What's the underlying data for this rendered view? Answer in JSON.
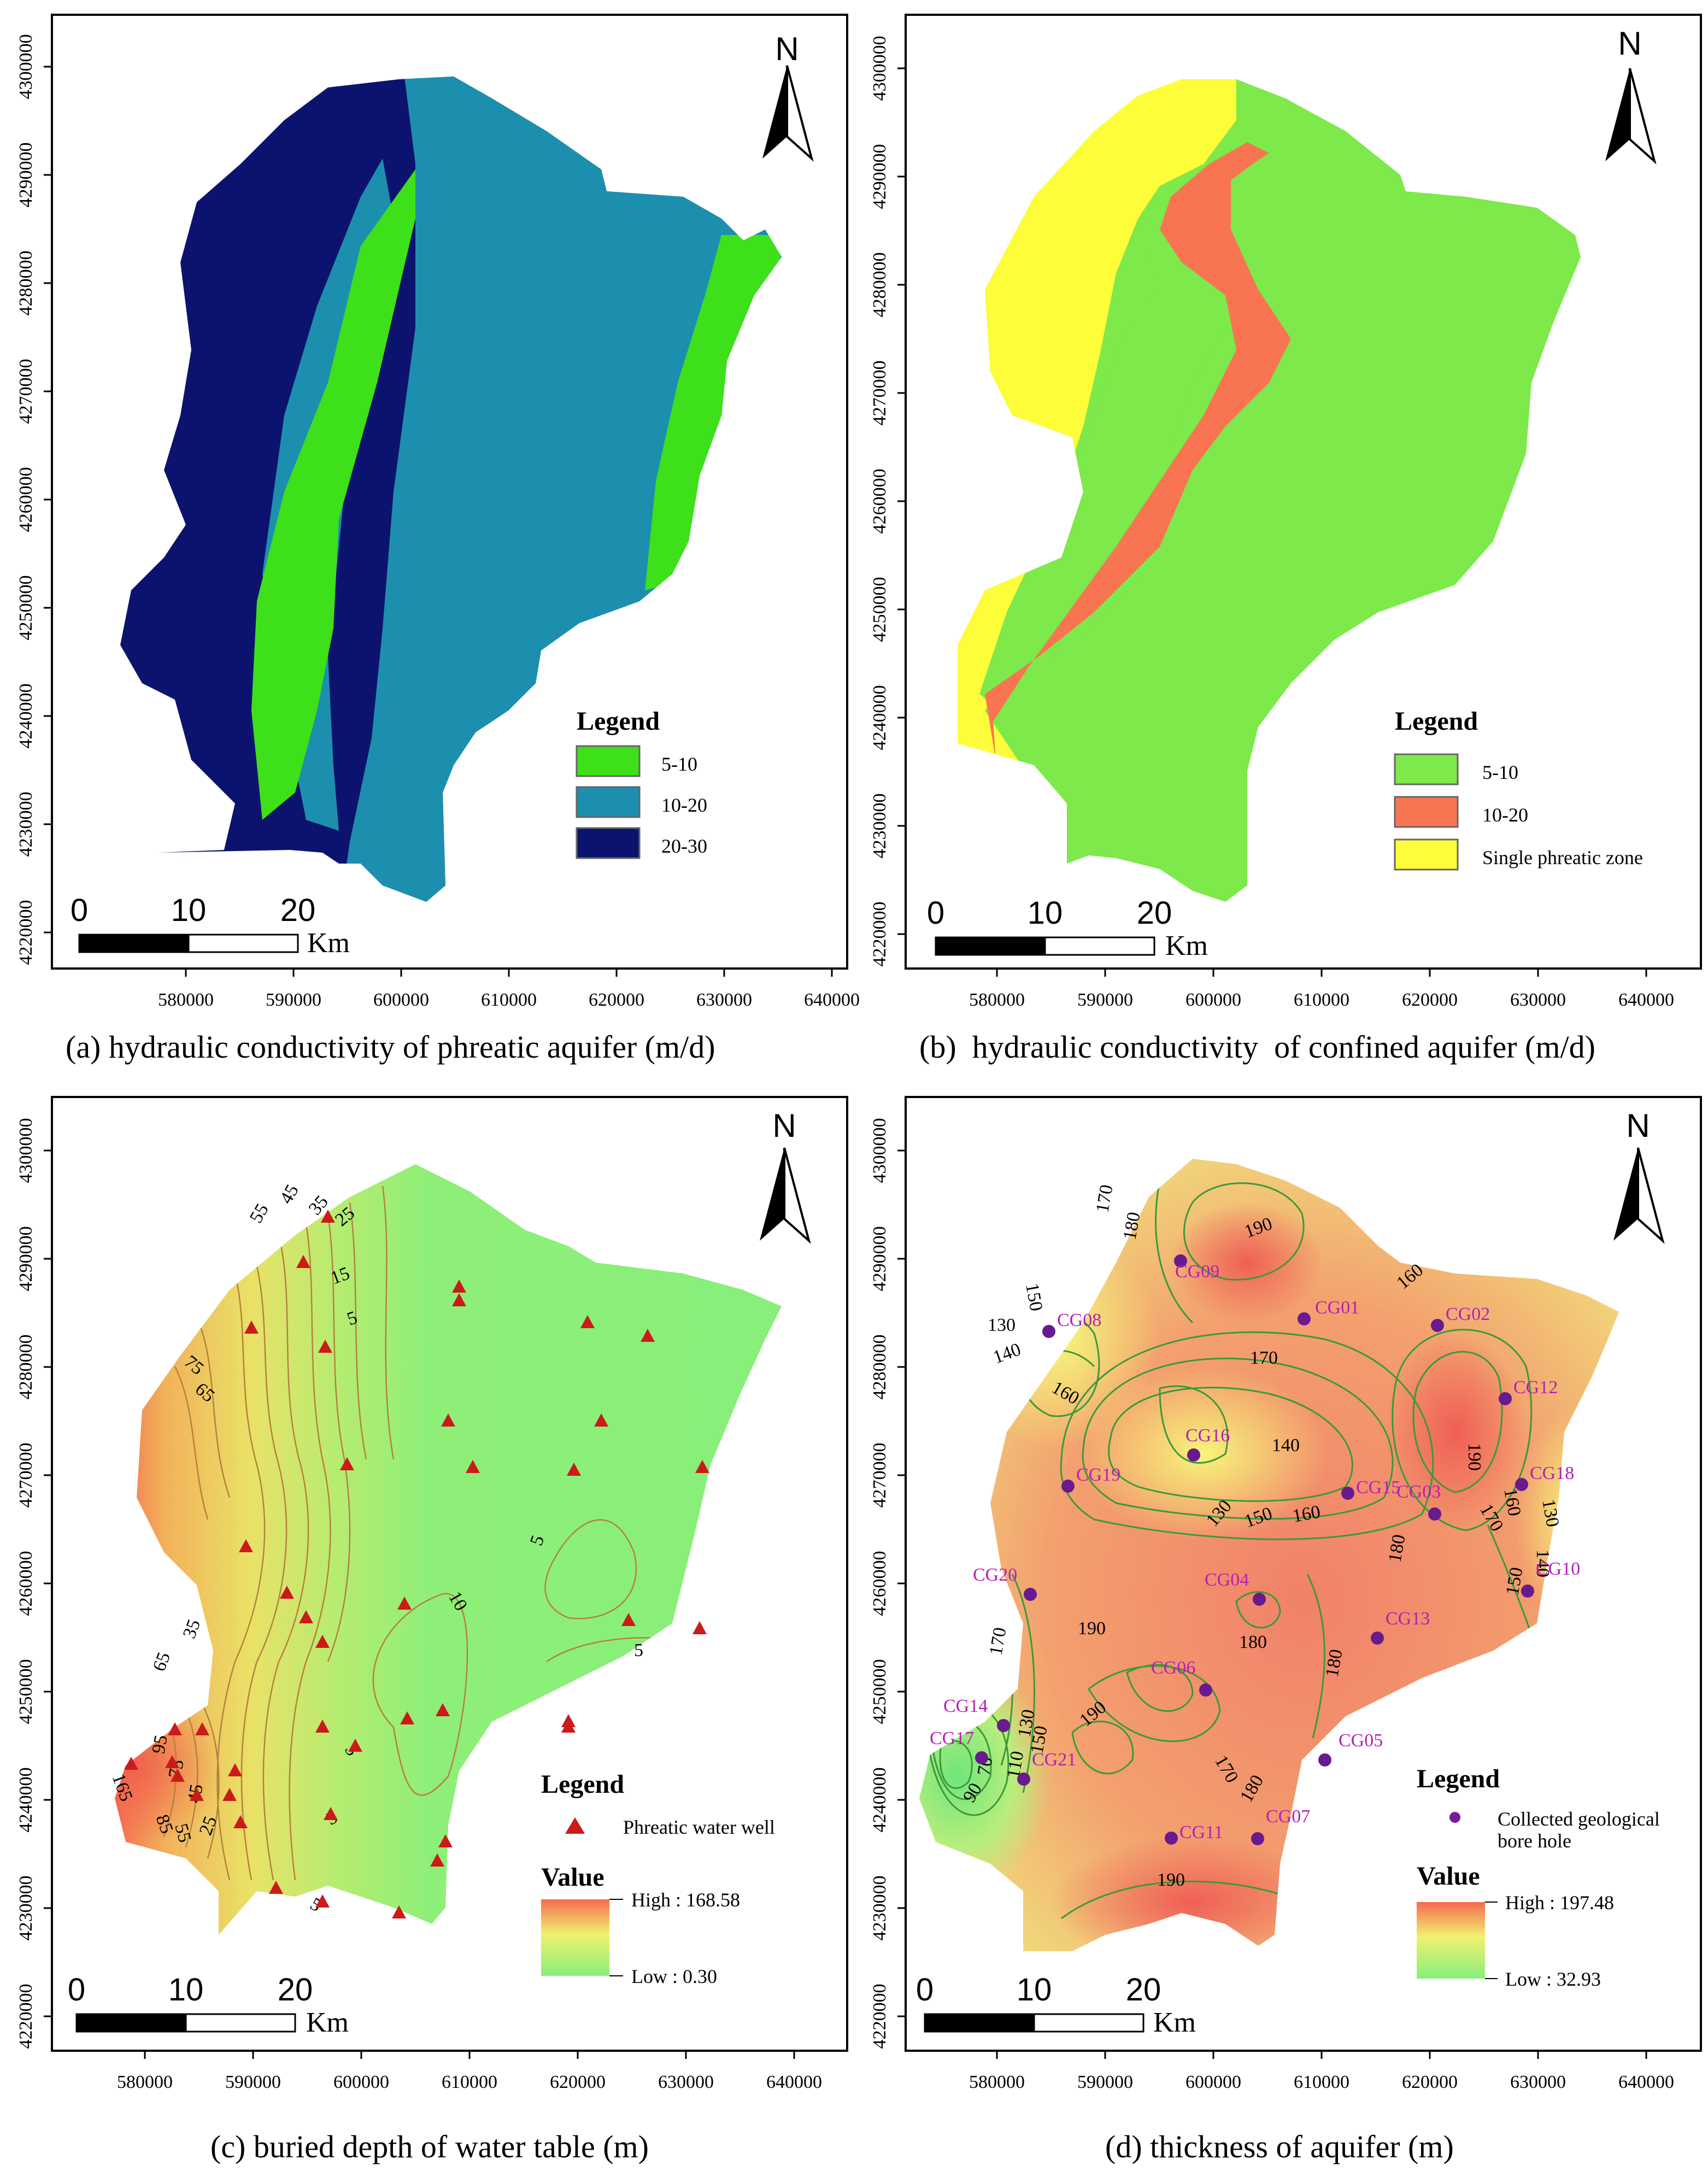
{
  "panels": [
    {
      "id": "a",
      "caption": "(a) hydraulic conductivity of phreatic aquifer (m/d)",
      "north": "N",
      "legend_title": "Legend",
      "legend_items": [
        {
          "label": "5-10",
          "color": "#3ee01a"
        },
        {
          "label": "10-20",
          "color": "#1d8fae"
        },
        {
          "label": "20-30",
          "color": "#0c136e"
        }
      ],
      "scale": {
        "ticks": [
          "0",
          "10",
          "20"
        ],
        "unit": "Km"
      },
      "x_ticks": [
        "580000",
        "590000",
        "600000",
        "610000",
        "620000",
        "630000",
        "640000"
      ],
      "y_ticks": [
        "4300000",
        "4290000",
        "4280000",
        "4270000",
        "4260000",
        "4250000",
        "4240000",
        "4230000",
        "4220000"
      ]
    },
    {
      "id": "b",
      "caption": "(b)  hydraulic conductivity  of confined aquifer (m/d)",
      "north": "N",
      "legend_title": "Legend",
      "legend_items": [
        {
          "label": "5-10",
          "color": "#7de94a"
        },
        {
          "label": "10-20",
          "color": "#f97451"
        },
        {
          "label": "Single phreatic zone",
          "color": "#fdfd3a"
        }
      ],
      "scale": {
        "ticks": [
          "0",
          "10",
          "20"
        ],
        "unit": "Km"
      },
      "x_ticks": [
        "580000",
        "590000",
        "600000",
        "610000",
        "620000",
        "630000",
        "640000"
      ],
      "y_ticks": [
        "4300000",
        "4290000",
        "4280000",
        "4270000",
        "4260000",
        "4250000",
        "4240000",
        "4230000",
        "4220000"
      ]
    },
    {
      "id": "c",
      "caption": "(c) buried depth of water table (m)",
      "north": "N",
      "legend_title": "Legend",
      "point_legend": "Phreatic water well",
      "value_title": "Value",
      "value_high": "High : 168.58",
      "value_low": "Low : 0.30",
      "contour_labels": [
        "55",
        "45",
        "35",
        "25",
        "15",
        "5",
        "75",
        "65",
        "10",
        "5",
        "5",
        "5",
        "65",
        "35",
        "95",
        "165",
        "75",
        "45",
        "85",
        "55",
        "25",
        "5",
        "5"
      ],
      "scale": {
        "ticks": [
          "0",
          "10",
          "20"
        ],
        "unit": "Km"
      },
      "x_ticks": [
        "580000",
        "590000",
        "600000",
        "610000",
        "620000",
        "630000",
        "640000"
      ],
      "y_ticks": [
        "4300000",
        "4290000",
        "4280000",
        "4270000",
        "4260000",
        "4250000",
        "4240000",
        "4230000",
        "4220000"
      ]
    },
    {
      "id": "d",
      "caption": "(d) thickness of aquifer (m)",
      "north": "N",
      "legend_title": "Legend",
      "point_legend": "Collected geological\nbore hole",
      "value_title": "Value",
      "value_high": "High : 197.48",
      "value_low": "Low : 32.93",
      "boreholes": [
        "CG01",
        "CG02",
        "CG03",
        "CG04",
        "CG05",
        "CG06",
        "CG07",
        "CG08",
        "CG09",
        "CG10",
        "CG11",
        "CG12",
        "CG13",
        "CG14",
        "CG15",
        "CG16",
        "CG17",
        "CG18",
        "CG19",
        "CG20",
        "CG21"
      ],
      "contour_labels": [
        "170",
        "180",
        "190",
        "150",
        "160",
        "130",
        "140",
        "160",
        "170",
        "140",
        "190",
        "130",
        "150",
        "160",
        "160",
        "170",
        "130",
        "140",
        "180",
        "150",
        "190",
        "180",
        "180",
        "170",
        "150",
        "110",
        "70",
        "90",
        "190",
        "170",
        "180",
        "190",
        "130"
      ],
      "scale": {
        "ticks": [
          "0",
          "10",
          "20"
        ],
        "unit": "Km"
      },
      "x_ticks": [
        "580000",
        "590000",
        "600000",
        "610000",
        "620000",
        "630000",
        "640000"
      ],
      "y_ticks": [
        "4300000",
        "4290000",
        "4280000",
        "4270000",
        "4260000",
        "4250000",
        "4240000",
        "4230000",
        "4220000"
      ]
    }
  ]
}
